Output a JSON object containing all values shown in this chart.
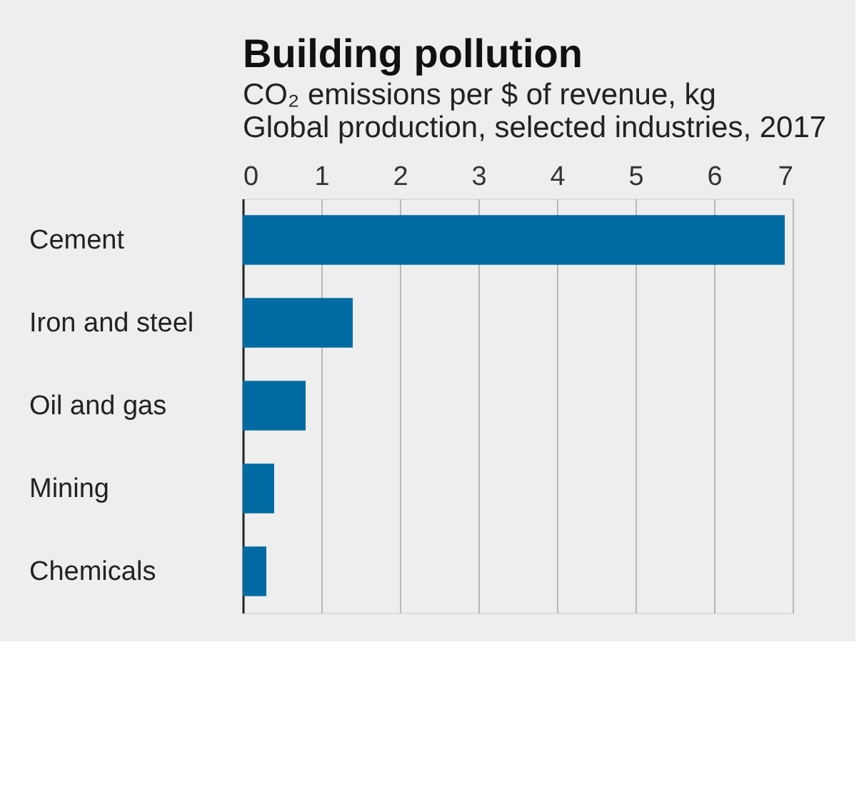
{
  "chart_data": {
    "type": "bar",
    "orientation": "horizontal",
    "title": "Building pollution",
    "subtitle": "CO₂ emissions per $ of revenue, kg\nGlobal production, selected industries, 2017",
    "categories": [
      "Cement",
      "Iron and steel",
      "Oil and gas",
      "Mining",
      "Chemicals"
    ],
    "values": [
      6.9,
      1.4,
      0.8,
      0.4,
      0.3
    ],
    "color": "#006ba2",
    "xlim": [
      0,
      7
    ],
    "xticks": [
      0,
      1,
      2,
      3,
      4,
      5,
      6,
      7
    ],
    "grid": "x"
  }
}
